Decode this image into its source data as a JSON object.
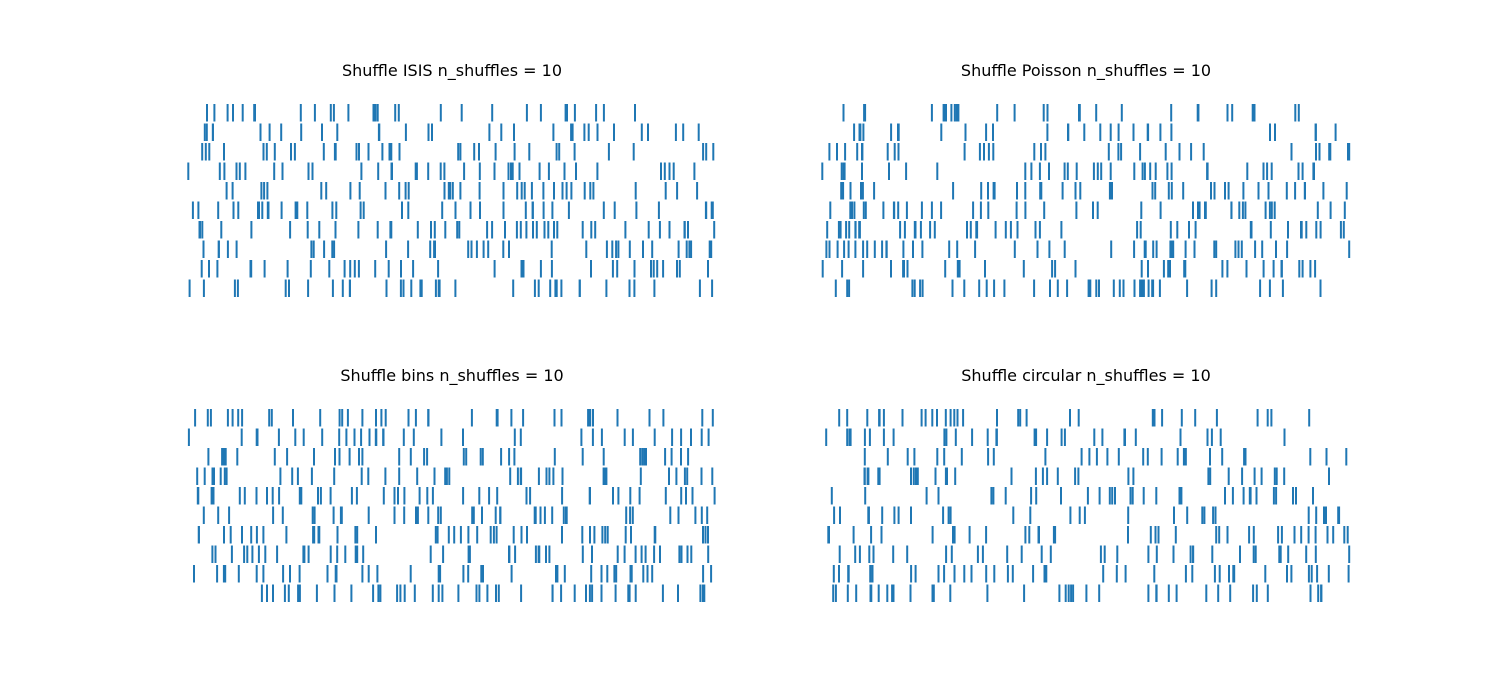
{
  "figure": {
    "background": "#ffffff",
    "spike_color": "#1f77b4"
  },
  "chart_data": [
    {
      "type": "raster",
      "title": "Shuffle ISIS n_shuffles = 10",
      "n_rows": 10,
      "x_range": [
        0,
        1
      ],
      "axes_visible": false,
      "n_spikes_per_row": [
        28,
        30,
        34,
        36,
        36,
        40,
        42,
        38,
        34,
        36
      ],
      "seed": 11
    },
    {
      "type": "raster",
      "title": "Shuffle Poisson n_shuffles = 10",
      "n_rows": 10,
      "x_range": [
        0,
        1
      ],
      "axes_visible": false,
      "n_spikes_per_row": [
        30,
        28,
        32,
        36,
        40,
        42,
        44,
        46,
        34,
        40
      ],
      "seed": 23
    },
    {
      "type": "raster",
      "title": "Shuffle bins n_shuffles = 10",
      "n_rows": 10,
      "x_range": [
        0,
        1
      ],
      "axes_visible": false,
      "n_spikes_per_row": [
        38,
        36,
        38,
        40,
        42,
        40,
        44,
        44,
        40,
        44
      ],
      "seed": 37
    },
    {
      "type": "raster",
      "title": "Shuffle circular n_shuffles = 10",
      "n_rows": 10,
      "x_range": [
        0,
        1
      ],
      "axes_visible": false,
      "n_spikes_per_row": [
        32,
        30,
        30,
        34,
        32,
        30,
        36,
        34,
        40,
        38
      ],
      "seed": 53
    }
  ]
}
